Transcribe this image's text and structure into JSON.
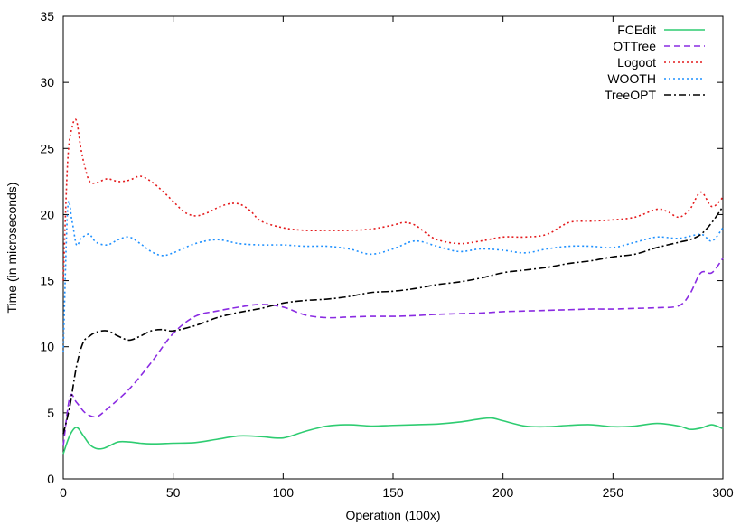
{
  "chart_data": {
    "type": "line",
    "title": "",
    "xlabel": "Operation (100x)",
    "ylabel": "Time (in microseconds)",
    "xlim": [
      0,
      300
    ],
    "ylim": [
      0,
      35
    ],
    "xticks": [
      0,
      50,
      100,
      150,
      200,
      250,
      300
    ],
    "yticks": [
      0,
      5,
      10,
      15,
      20,
      25,
      30,
      35
    ],
    "grid": false,
    "legend_position": "top-right",
    "series": [
      {
        "name": "FCEdit",
        "color": "#2ecc71",
        "dash": "solid",
        "x": [
          0,
          3,
          6,
          9,
          12,
          15,
          18,
          21,
          25,
          30,
          35,
          40,
          50,
          60,
          70,
          80,
          90,
          100,
          110,
          120,
          130,
          140,
          150,
          160,
          170,
          180,
          190,
          195,
          200,
          210,
          220,
          230,
          240,
          250,
          260,
          270,
          280,
          285,
          290,
          295,
          300
        ],
        "y": [
          1.9,
          3.3,
          3.9,
          3.3,
          2.6,
          2.3,
          2.3,
          2.5,
          2.8,
          2.8,
          2.7,
          2.65,
          2.7,
          2.75,
          3.0,
          3.25,
          3.2,
          3.1,
          3.6,
          4.0,
          4.1,
          4.0,
          4.05,
          4.1,
          4.15,
          4.3,
          4.55,
          4.6,
          4.4,
          4.0,
          3.95,
          4.05,
          4.1,
          3.95,
          4.0,
          4.2,
          4.0,
          3.75,
          3.85,
          4.1,
          3.8
        ]
      },
      {
        "name": "OTTree",
        "color": "#8a2be2",
        "dash": "dashed",
        "x": [
          0,
          3,
          6,
          10,
          15,
          20,
          30,
          40,
          50,
          60,
          70,
          80,
          90,
          100,
          110,
          120,
          130,
          140,
          150,
          160,
          170,
          180,
          190,
          200,
          210,
          220,
          230,
          240,
          250,
          260,
          270,
          280,
          285,
          290,
          295,
          300
        ],
        "y": [
          2.5,
          6.2,
          5.8,
          5.0,
          4.7,
          5.3,
          6.8,
          8.8,
          11.0,
          12.3,
          12.7,
          13.0,
          13.2,
          13.0,
          12.4,
          12.2,
          12.25,
          12.3,
          12.3,
          12.35,
          12.45,
          12.5,
          12.55,
          12.65,
          12.7,
          12.75,
          12.8,
          12.85,
          12.85,
          12.9,
          12.95,
          13.1,
          14.0,
          15.6,
          15.6,
          16.7
        ]
      },
      {
        "name": "Logoot",
        "color": "#e41a1c",
        "dash": "dotted",
        "x": [
          0,
          2,
          4,
          6,
          8,
          10,
          12,
          15,
          20,
          25,
          30,
          35,
          40,
          45,
          50,
          55,
          60,
          65,
          70,
          75,
          80,
          85,
          90,
          100,
          110,
          120,
          130,
          140,
          150,
          155,
          160,
          165,
          170,
          180,
          190,
          200,
          210,
          220,
          230,
          240,
          250,
          260,
          270,
          275,
          280,
          285,
          290,
          295,
          300
        ],
        "y": [
          15.0,
          24.0,
          26.6,
          27.1,
          25.0,
          23.5,
          22.5,
          22.4,
          22.7,
          22.5,
          22.6,
          22.9,
          22.5,
          21.8,
          21.0,
          20.2,
          19.9,
          20.1,
          20.5,
          20.8,
          20.8,
          20.3,
          19.5,
          19.0,
          18.8,
          18.8,
          18.8,
          18.9,
          19.2,
          19.4,
          19.2,
          18.6,
          18.1,
          17.8,
          18.0,
          18.3,
          18.3,
          18.5,
          19.4,
          19.5,
          19.6,
          19.8,
          20.4,
          20.2,
          19.8,
          20.4,
          21.7,
          20.6,
          21.3
        ]
      },
      {
        "name": "WOOTH",
        "color": "#1e90ff",
        "dash": "dotted",
        "x": [
          0,
          2,
          4,
          6,
          8,
          10,
          12,
          15,
          20,
          25,
          30,
          35,
          40,
          45,
          50,
          60,
          70,
          80,
          90,
          100,
          110,
          120,
          130,
          140,
          150,
          160,
          170,
          180,
          190,
          200,
          210,
          220,
          230,
          240,
          250,
          260,
          270,
          280,
          290,
          295,
          300
        ],
        "y": [
          9.6,
          20.4,
          19.5,
          17.7,
          18.2,
          18.4,
          18.5,
          17.9,
          17.7,
          18.1,
          18.3,
          17.8,
          17.2,
          16.9,
          17.1,
          17.8,
          18.1,
          17.8,
          17.7,
          17.7,
          17.6,
          17.6,
          17.4,
          17.0,
          17.4,
          18.0,
          17.6,
          17.2,
          17.4,
          17.3,
          17.1,
          17.4,
          17.6,
          17.6,
          17.5,
          17.9,
          18.3,
          18.2,
          18.5,
          18.0,
          19.0
        ]
      },
      {
        "name": "TreeOPT",
        "color": "#000000",
        "dash": "dashdot",
        "x": [
          0,
          3,
          6,
          9,
          12,
          15,
          20,
          25,
          30,
          35,
          40,
          45,
          50,
          60,
          70,
          80,
          90,
          100,
          110,
          120,
          130,
          140,
          150,
          160,
          170,
          180,
          190,
          200,
          210,
          220,
          230,
          240,
          250,
          260,
          270,
          280,
          285,
          290,
          295,
          300
        ],
        "y": [
          3.4,
          5.5,
          8.5,
          10.3,
          10.8,
          11.1,
          11.2,
          10.8,
          10.5,
          10.8,
          11.2,
          11.3,
          11.2,
          11.6,
          12.2,
          12.6,
          12.9,
          13.3,
          13.5,
          13.6,
          13.8,
          14.1,
          14.2,
          14.4,
          14.7,
          14.9,
          15.2,
          15.6,
          15.8,
          16.0,
          16.3,
          16.5,
          16.8,
          17.0,
          17.5,
          17.9,
          18.1,
          18.5,
          19.4,
          20.6
        ]
      }
    ]
  }
}
